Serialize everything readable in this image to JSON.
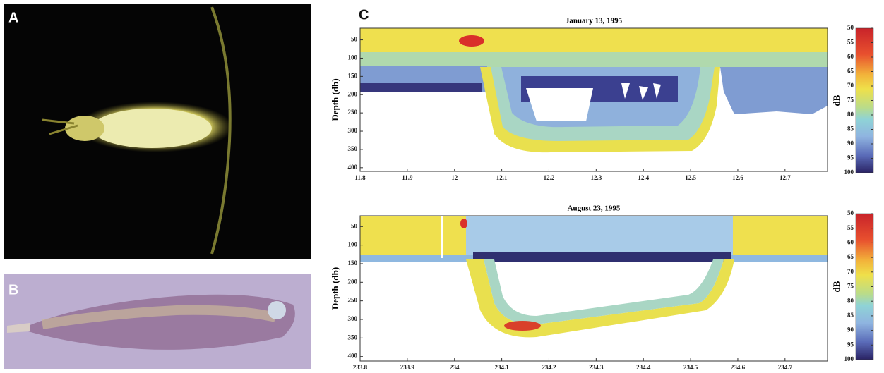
{
  "panels": {
    "a": {
      "label": "A"
    },
    "b": {
      "label": "B"
    },
    "c": {
      "label": "C"
    }
  },
  "chart_data": [
    {
      "type": "heatmap",
      "title": "January 13, 1995",
      "y_label": "Depth (db)",
      "xlim": [
        11.8,
        12.79
      ],
      "xticks": [
        11.8,
        11.9,
        12,
        12.1,
        12.2,
        12.3,
        12.4,
        12.5,
        12.6,
        12.7
      ],
      "ylim": [
        18,
        410
      ],
      "yticks": [
        50,
        100,
        150,
        200,
        250,
        300,
        350,
        400
      ],
      "colorbar": {
        "label": "dB",
        "lim": [
          50,
          100
        ],
        "ticks": [
          50,
          55,
          60,
          65,
          70,
          75,
          80,
          85,
          90,
          95,
          100
        ]
      }
    },
    {
      "type": "heatmap",
      "title": "August 23, 1995",
      "y_label": "Depth (db)",
      "xlim": [
        233.8,
        234.79
      ],
      "xticks": [
        233.8,
        233.9,
        234,
        234.1,
        234.2,
        234.3,
        234.4,
        234.5,
        234.6,
        234.7
      ],
      "ylim": [
        21,
        412
      ],
      "yticks": [
        50,
        100,
        150,
        200,
        250,
        300,
        350,
        400
      ],
      "colorbar": {
        "label": "dB",
        "lim": [
          50,
          100
        ],
        "ticks": [
          50,
          55,
          60,
          65,
          70,
          75,
          80,
          85,
          90,
          95,
          100
        ]
      }
    }
  ]
}
